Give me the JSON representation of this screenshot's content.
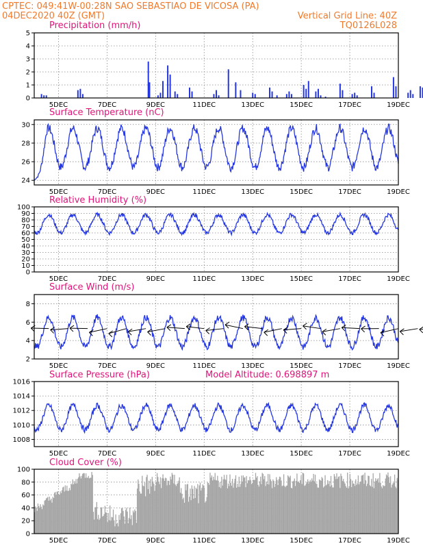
{
  "header": {
    "line1_left": "CPTEC:   049:41W-00:28N  SAO SEBASTIAO DE VICOSA (PA)",
    "line2_left": "04DEC2020 40Z (GMT)",
    "line2_right": "Vertical Grid Line: 40Z",
    "line3_right": "TQ0126L028"
  },
  "colors": {
    "header": "#f07a2a",
    "title": "#e0137a",
    "series": "#2436e0",
    "cloud": "#a6a6a6",
    "grid": "#888888"
  },
  "x_axis_labels": [
    "5DEC",
    "7DEC",
    "9DEC",
    "11DEC",
    "13DEC",
    "15DEC",
    "17DEC",
    "19DEC"
  ],
  "chart_data": [
    {
      "type": "bar",
      "title": "Precipitation (mm/h)",
      "ylim": [
        0,
        5
      ],
      "yticks": [
        "0",
        "1",
        "2",
        "3",
        "4",
        "5"
      ],
      "x_unit": "days since 04DEC2020",
      "x": [
        0.3,
        0.4,
        0.5,
        1.8,
        1.9,
        2.0,
        4.7,
        4.75,
        5.1,
        5.2,
        5.3,
        5.5,
        5.6,
        5.8,
        5.9,
        6.4,
        6.5,
        7.4,
        7.5,
        7.6,
        8.0,
        8.3,
        8.5,
        9.0,
        9.1,
        9.7,
        9.8,
        10.0,
        10.4,
        10.5,
        10.6,
        11.1,
        11.2,
        11.3,
        11.6,
        11.7,
        11.8,
        12.0,
        12.6,
        12.7,
        13.1,
        13.2,
        13.3,
        13.9,
        14.0,
        14.8,
        14.9,
        15.4,
        15.5,
        15.6,
        15.9,
        16.0,
        16.1,
        16.4,
        16.5,
        16.6,
        17.2,
        17.3,
        17.4,
        17.9,
        18.0,
        18.1,
        18.5,
        18.6,
        18.7,
        19.1,
        19.2
      ],
      "values": [
        0.3,
        0.2,
        0.2,
        0.6,
        0.7,
        0.3,
        2.8,
        1.2,
        0.2,
        0.4,
        1.3,
        2.5,
        1.8,
        0.5,
        0.3,
        0.8,
        0.5,
        0.3,
        0.6,
        0.2,
        2.2,
        1.2,
        0.6,
        0.4,
        0.3,
        0.8,
        0.5,
        0.2,
        0.3,
        0.5,
        0.3,
        1.0,
        0.7,
        1.3,
        0.5,
        0.7,
        0.2,
        0.1,
        1.1,
        0.6,
        0.3,
        0.4,
        0.2,
        0.9,
        0.4,
        1.6,
        0.9,
        0.4,
        0.6,
        0.3,
        0.9,
        0.8,
        0.4,
        0.3,
        0.7,
        0.4,
        0.8,
        0.6,
        0.4,
        0.3,
        0.4,
        0.2,
        0.9,
        0.8,
        0.3,
        1.0,
        0.7
      ]
    },
    {
      "type": "line",
      "title": "Surface Temperature (nC)",
      "ylim": [
        23.5,
        30.5
      ],
      "yticks": [
        "24",
        "26",
        "28",
        "30"
      ],
      "amplitude": 2.1,
      "mean": 27.5,
      "start_value": 24
    },
    {
      "type": "line",
      "title": "Relative Humidity (%)",
      "ylim": [
        0,
        100
      ],
      "yticks": [
        "0",
        "10",
        "20",
        "30",
        "40",
        "50",
        "60",
        "70",
        "80",
        "90",
        "100"
      ],
      "amplitude": 14,
      "mean": 74
    },
    {
      "type": "line",
      "title": "Surface Wind (m/s)",
      "ylim": [
        2,
        9
      ],
      "yticks": [
        "2",
        "4",
        "6",
        "8"
      ],
      "amplitude": 1.6,
      "mean": 4.9,
      "arrows_x": [
        0.6,
        1.4,
        2.2,
        3.0,
        3.8,
        4.6,
        5.4,
        6.2,
        7.0,
        7.8,
        8.6,
        9.4,
        10.2,
        11.0,
        11.8,
        12.6,
        13.4,
        14.2,
        15.0,
        15.8,
        16.6,
        17.4,
        18.2
      ]
    },
    {
      "type": "line",
      "title": "Surface Pressure (hPa)",
      "annotation": "Model Altitude: 0.698897 m",
      "ylim": [
        1007,
        1016
      ],
      "yticks": [
        "1008",
        "1010",
        "1012",
        "1014",
        "1016"
      ],
      "amplitude": 1.7,
      "mean": 1011
    },
    {
      "type": "area",
      "title": "Cloud Cover (%)",
      "ylim": [
        0,
        100
      ],
      "yticks": [
        "0",
        "20",
        "40",
        "60",
        "80",
        "100"
      ]
    }
  ]
}
